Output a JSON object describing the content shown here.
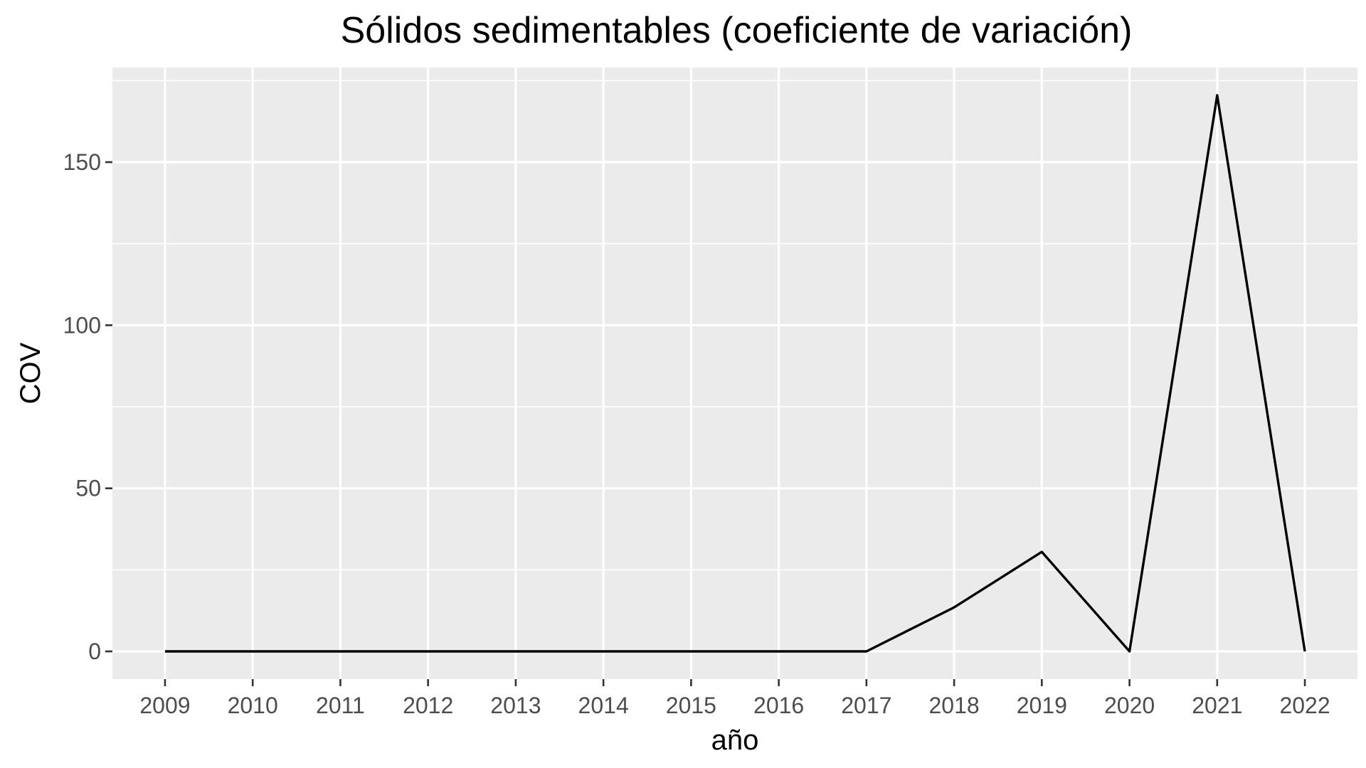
{
  "chart_data": {
    "type": "line",
    "title": "Sólidos sedimentables (coeficiente de variación)",
    "xlabel": "año",
    "ylabel": "COV",
    "x": [
      2009,
      2010,
      2011,
      2012,
      2013,
      2014,
      2015,
      2016,
      2017,
      2018,
      2019,
      2020,
      2021,
      2022
    ],
    "x_tick_labels": [
      "2009",
      "2010",
      "2011",
      "2012",
      "2013",
      "2014",
      "2015",
      "2016",
      "2017",
      "2018",
      "2019",
      "2020",
      "2021",
      "2022"
    ],
    "series": [
      {
        "values": [
          0,
          0,
          0,
          0,
          0,
          0,
          0,
          0,
          0,
          13.5,
          30.5,
          0,
          170.5,
          0
        ]
      }
    ],
    "y_ticks": [
      0,
      50,
      100,
      150
    ],
    "y_tick_labels": [
      "0",
      "50",
      "100",
      "150"
    ],
    "xlim": [
      2008.4,
      2022.6
    ],
    "ylim": [
      -8.5,
      179
    ],
    "grid": true,
    "legend": "none",
    "colors": {
      "panel": "#ebebeb",
      "grid": "#ffffff",
      "line": "#000000",
      "tick_text": "#4d4d4d"
    }
  }
}
